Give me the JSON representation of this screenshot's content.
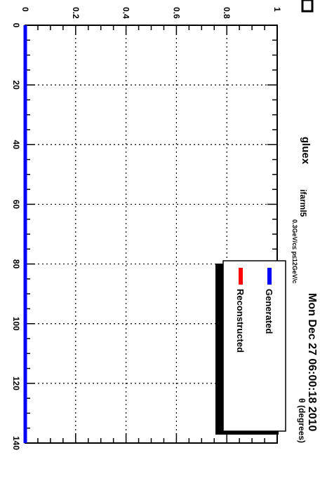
{
  "chart_data": {
    "type": "line",
    "orientation": "rotated-90-clockwise",
    "xlabel": "θ (degrees)",
    "ylabel": "",
    "xlim": [
      0,
      140
    ],
    "ylim": [
      0,
      1
    ],
    "x_ticks": [
      0,
      20,
      40,
      60,
      80,
      100,
      120,
      140
    ],
    "y_ticks": [
      0,
      0.2,
      0.4,
      0.6,
      0.8,
      1
    ],
    "x_tick_labels": [
      "0",
      "20",
      "40",
      "60",
      "80",
      "100",
      "120",
      "140"
    ],
    "y_tick_labels": [
      "0",
      "0.2",
      "0.4",
      "0.6",
      "0.8",
      "1"
    ],
    "grid": true,
    "legend_position": "top-right",
    "series": [
      {
        "name": "Generated",
        "color": "#0000ff",
        "x": [
          0,
          140
        ],
        "y": [
          0,
          0
        ]
      },
      {
        "name": "Reconstructed",
        "color": "#ff0000",
        "x": [],
        "y": []
      }
    ]
  },
  "header": {
    "user": "gluex",
    "host": "ifarml5",
    "cut_label": "0.3GeV/c≤ p≤12GeV/c",
    "timestamp": "Mon Dec 27 06:00:18 2010"
  }
}
